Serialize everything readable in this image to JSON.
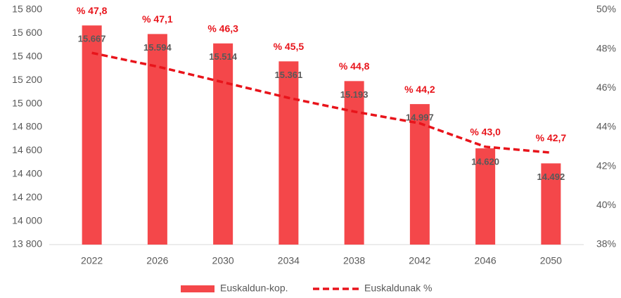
{
  "chart_data": {
    "type": "bar_line",
    "categories": [
      "2022",
      "2026",
      "2030",
      "2034",
      "2038",
      "2042",
      "2046",
      "2050"
    ],
    "series": [
      {
        "name": "Euskaldun-kop.",
        "type": "bar",
        "color": "#f4474a",
        "values": [
          15667,
          15594,
          15514,
          15361,
          15193,
          14997,
          14620,
          14492
        ],
        "value_labels": [
          "15.667",
          "15.594",
          "15.514",
          "15.361",
          "15.193",
          "14.997",
          "14.620",
          "14.492"
        ]
      },
      {
        "name": "Euskaldunak %",
        "type": "line",
        "axis": "y2",
        "color": "#e8141b",
        "values": [
          47.8,
          47.1,
          46.3,
          45.5,
          44.8,
          44.2,
          43.0,
          42.7
        ],
        "value_labels": [
          "% 47,8",
          "% 47,1",
          "% 46,3",
          "% 45,5",
          "% 44,8",
          "% 44,2",
          "% 43,0",
          "% 42,7"
        ]
      }
    ],
    "ylim": [
      13800,
      15800
    ],
    "yticks": [
      {
        "value": 13800,
        "label": "13 800"
      },
      {
        "value": 14000,
        "label": "14 000"
      },
      {
        "value": 14200,
        "label": "14 200"
      },
      {
        "value": 14400,
        "label": "14 400"
      },
      {
        "value": 14600,
        "label": "14 600"
      },
      {
        "value": 14800,
        "label": "14 800"
      },
      {
        "value": 15000,
        "label": "15 000"
      },
      {
        "value": 15200,
        "label": "15 200"
      },
      {
        "value": 15400,
        "label": "15 400"
      },
      {
        "value": 15600,
        "label": "15 600"
      },
      {
        "value": 15800,
        "label": "15 800"
      }
    ],
    "y2lim": [
      38,
      50
    ],
    "y2ticks": [
      {
        "value": 38,
        "label": "38%"
      },
      {
        "value": 40,
        "label": "40%"
      },
      {
        "value": 42,
        "label": "42%"
      },
      {
        "value": 44,
        "label": "44%"
      },
      {
        "value": 46,
        "label": "46%"
      },
      {
        "value": 48,
        "label": "48%"
      },
      {
        "value": 50,
        "label": "50%"
      }
    ],
    "legend": "bottom"
  }
}
